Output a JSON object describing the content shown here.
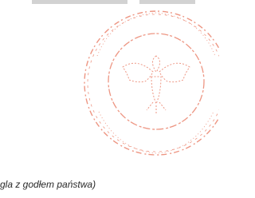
{
  "caption": "gla z godłem państwa)"
}
